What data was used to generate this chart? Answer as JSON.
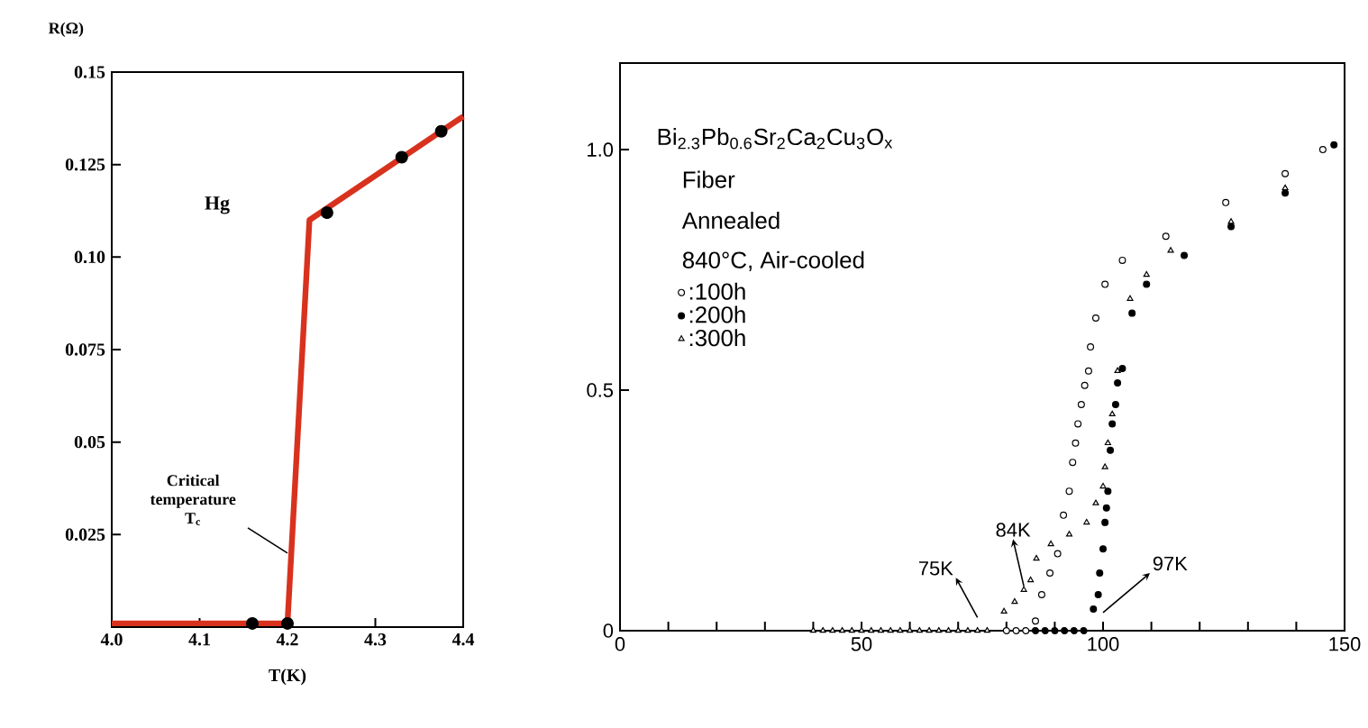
{
  "chart_data": [
    {
      "type": "line",
      "xlabel": "T(K)",
      "ylabel": "R(Ω)",
      "xlim": [
        4.0,
        4.4
      ],
      "ylim": [
        0,
        0.15
      ],
      "xticks": [
        {
          "value": 4.0,
          "label": "4.0"
        },
        4.1,
        4.2,
        4.3,
        4.4
      ],
      "yticks": [
        0.025,
        0.05,
        0.075,
        {
          "value": 0.1,
          "label": "0.10"
        },
        0.125,
        0.15
      ],
      "annotations": [
        "Hg",
        {
          "text": "Critical temperature T$_{c}$",
          "x": 4.2,
          "y": 0.02
        }
      ],
      "series": [
        {
          "type": "line",
          "color": "#d8321e",
          "marker": "none",
          "x": [
            4.0,
            4.2,
            4.225,
            4.4
          ],
          "values": [
            0.001,
            0.001,
            0.11,
            0.138
          ]
        },
        {
          "type": "scatter",
          "color": "#000000",
          "marker": "circle",
          "x": [
            4.16,
            4.2,
            4.245,
            4.33,
            4.375
          ],
          "values": [
            0.001,
            0.001,
            0.112,
            0.127,
            0.134
          ]
        }
      ]
    },
    {
      "type": "scatter",
      "xlim": [
        0,
        150
      ],
      "ylim": [
        0,
        1.18
      ],
      "legend": "top left",
      "xticks": [
        0,
        {
          "value": 10,
          "label": null
        },
        {
          "value": 20,
          "label": null
        },
        {
          "value": 30,
          "label": null
        },
        {
          "value": 40,
          "label": null
        },
        50,
        {
          "value": 60,
          "label": null
        },
        {
          "value": 70,
          "label": null
        },
        {
          "value": 80,
          "label": null
        },
        {
          "value": 90,
          "label": null
        },
        100,
        {
          "value": 110,
          "label": null
        },
        {
          "value": 120,
          "label": null
        },
        {
          "value": 130,
          "label": null
        },
        {
          "value": 140,
          "label": null
        },
        150
      ],
      "yticks": [
        0,
        0.5,
        {
          "value": 1.0,
          "label": "1.0"
        }
      ],
      "annotations": [
        "Bi$_{2.3}$Pb$_{0.6}$Sr$_{2}$Ca$_{2}$Cu$_{3}$O$_{x}$",
        "Fiber",
        "Annealed",
        "840°C, Air-cooled",
        {
          "text": "75K",
          "x": 74,
          "y": 0.02
        },
        {
          "text": "84K",
          "x": 83.6,
          "y": 0.085
        },
        {
          "text": "97K",
          "x": 100,
          "y": 0.03
        }
      ],
      "series": [
        {
          "name": ":100h",
          "color": "#ffffff",
          "marker": "circle",
          "x": [
            80,
            82,
            84,
            86,
            87.3,
            89,
            90.6,
            91.8,
            93,
            93.7,
            94.3,
            94.8,
            95.5,
            96.2,
            97,
            97.4,
            98.5,
            100.4,
            104,
            113,
            125.4,
            137.7,
            145.5
          ],
          "values": [
            0,
            0,
            0,
            0.02,
            0.075,
            0.12,
            0.16,
            0.24,
            0.29,
            0.35,
            0.39,
            0.43,
            0.47,
            0.51,
            0.54,
            0.59,
            0.65,
            0.72,
            0.77,
            0.82,
            0.89,
            0.95,
            1.0
          ]
        },
        {
          "name": ":200h",
          "color": "#000000",
          "marker": "circle",
          "x": [
            86,
            88,
            90,
            92,
            94,
            96,
            98,
            99,
            99.3,
            100,
            100.4,
            100.7,
            101,
            101.5,
            101.9,
            102.6,
            103,
            104,
            106,
            109,
            116.8,
            126.5,
            137.7,
            147.8
          ],
          "values": [
            0,
            0,
            0,
            0,
            0,
            0,
            0.045,
            0.075,
            0.12,
            0.17,
            0.225,
            0.255,
            0.29,
            0.375,
            0.43,
            0.47,
            0.515,
            0.545,
            0.66,
            0.72,
            0.78,
            0.84,
            0.91,
            1.01
          ]
        },
        {
          "name": ":300h",
          "color": "#ffffff",
          "marker": "triangle",
          "x": [
            40,
            42,
            44,
            46,
            48,
            50,
            52,
            54,
            56,
            58,
            60,
            62,
            64,
            66,
            68,
            70,
            72,
            74,
            76,
            79.5,
            81.7,
            83.6,
            85,
            86.2,
            89.2,
            93,
            96.6,
            98.5,
            100,
            100.4,
            101,
            101.9,
            103,
            105.6,
            109,
            114,
            126.5,
            137.7
          ],
          "values": [
            0,
            0,
            0,
            0,
            0,
            0,
            0,
            0,
            0,
            0,
            0,
            0,
            0,
            0,
            0,
            0,
            0,
            0,
            0,
            0.04,
            0.06,
            0.085,
            0.105,
            0.15,
            0.18,
            0.2,
            0.225,
            0.265,
            0.3,
            0.34,
            0.39,
            0.45,
            0.54,
            0.69,
            0.74,
            0.79,
            0.85,
            0.92
          ]
        }
      ]
    }
  ]
}
